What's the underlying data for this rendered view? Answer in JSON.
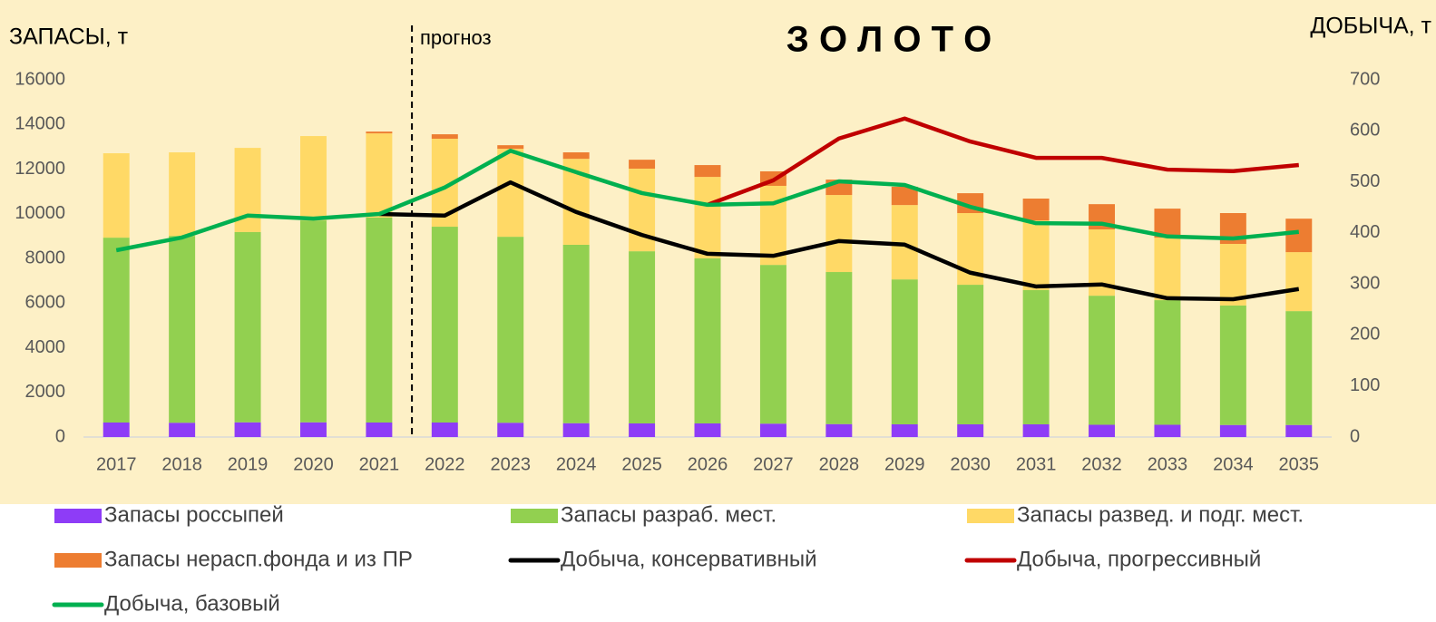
{
  "chart_data": {
    "type": "bar-line",
    "title": "З О Л О Т О",
    "y_label": "ЗАПАСЫ, т",
    "y2_label": "ДОБЫЧА, т",
    "annotation": "прогноз",
    "categories": [
      "2017",
      "2018",
      "2019",
      "2020",
      "2021",
      "2022",
      "2023",
      "2024",
      "2025",
      "2026",
      "2027",
      "2028",
      "2029",
      "2030",
      "2031",
      "2032",
      "2033",
      "2034",
      "2035"
    ],
    "ylim": [
      0,
      16000
    ],
    "yticks": [
      0,
      2000,
      4000,
      6000,
      8000,
      10000,
      12000,
      14000,
      16000
    ],
    "y2lim": [
      0,
      700
    ],
    "y2ticks": [
      0,
      100,
      200,
      300,
      400,
      500,
      600,
      700
    ],
    "series": [
      {
        "name": "Запасы россыпей",
        "type": "bar",
        "color": "#8e3cf7",
        "values": [
          650,
          640,
          660,
          660,
          650,
          650,
          640,
          620,
          610,
          610,
          600,
          580,
          570,
          570,
          570,
          550,
          550,
          540,
          540
        ]
      },
      {
        "name": "Запасы разраб. мест.",
        "type": "bar",
        "color": "#92d050",
        "values": [
          8280,
          8370,
          8520,
          9040,
          9180,
          8770,
          8330,
          7990,
          7710,
          7390,
          7110,
          6810,
          6490,
          6250,
          6010,
          5780,
          5580,
          5350,
          5100
        ]
      },
      {
        "name": "Запасы развед. и подг. мест.",
        "type": "bar",
        "color": "#ffd966",
        "values": [
          3780,
          3740,
          3770,
          3780,
          3770,
          3940,
          3940,
          3850,
          3700,
          3650,
          3540,
          3450,
          3330,
          3210,
          3120,
          2970,
          2800,
          2760,
          2640
        ]
      },
      {
        "name": "Запасы нерасп.фонда и из ПР",
        "type": "bar",
        "color": "#ed7d31",
        "values": [
          0,
          0,
          0,
          0,
          80,
          200,
          160,
          290,
          400,
          530,
          650,
          690,
          820,
          890,
          980,
          1130,
          1300,
          1380,
          1500
        ]
      },
      {
        "name": "Добыча, консервативный",
        "type": "line",
        "axis": "y2",
        "color": "#000000",
        "values": [
          null,
          null,
          null,
          null,
          437,
          434,
          499,
          441,
          396,
          359,
          355,
          384,
          377,
          322,
          295,
          299,
          272,
          270,
          290
        ]
      },
      {
        "name": "Добыча, прогрессивный",
        "type": "line",
        "axis": "y2",
        "color": "#c00000",
        "values": [
          null,
          null,
          null,
          null,
          null,
          null,
          null,
          null,
          null,
          455,
          503,
          585,
          624,
          579,
          547,
          547,
          524,
          521,
          533
        ]
      },
      {
        "name": "Добыча, базовый",
        "type": "line",
        "axis": "y2",
        "color": "#00b050",
        "values": [
          366,
          391,
          434,
          428,
          437,
          489,
          561,
          519,
          478,
          455,
          458,
          501,
          494,
          451,
          419,
          418,
          393,
          389,
          402
        ]
      }
    ]
  }
}
